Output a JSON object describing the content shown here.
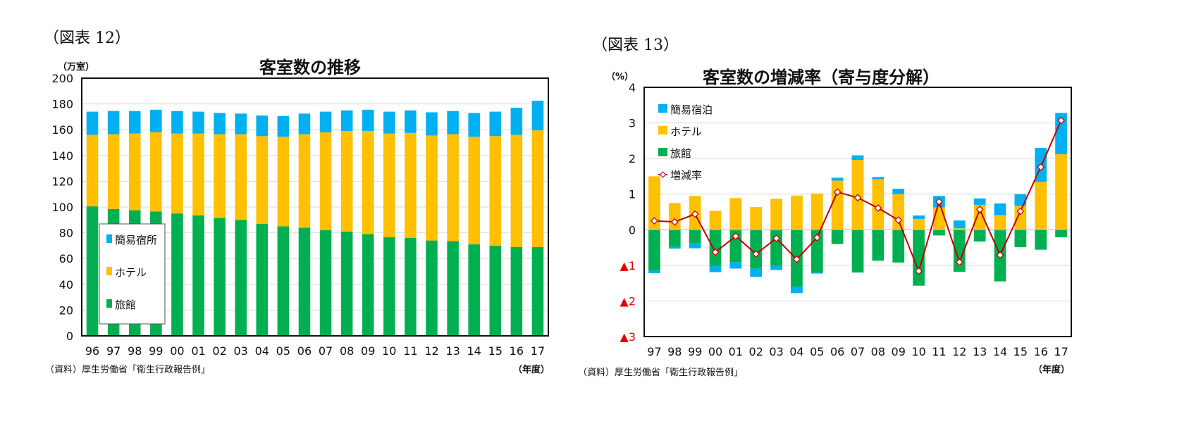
{
  "chart_data": [
    {
      "type": "bar",
      "stacked": true,
      "figure_label": "（図表 12）",
      "title": "客室数の推移",
      "ylabel": "（万室）",
      "xlabel": "（年度）",
      "source": "（資料）厚生労働省「衛生行政報告例」",
      "ylim": [
        0,
        200
      ],
      "yticks": [
        0,
        20,
        40,
        60,
        80,
        100,
        120,
        140,
        160,
        180,
        200
      ],
      "grid": true,
      "legend_position": "left-middle",
      "categories": [
        "96",
        "97",
        "98",
        "99",
        "00",
        "01",
        "02",
        "03",
        "04",
        "05",
        "06",
        "07",
        "08",
        "09",
        "10",
        "11",
        "12",
        "13",
        "14",
        "15",
        "16",
        "17"
      ],
      "series": [
        {
          "name": "旅館",
          "color": "#00B050",
          "values": [
            100.5,
            98.5,
            97.5,
            96.5,
            95,
            93.5,
            91.5,
            90,
            87,
            85,
            84,
            82,
            81,
            79,
            76.5,
            76,
            74,
            73.5,
            71,
            70,
            69,
            69
          ]
        },
        {
          "name": "ホテル",
          "color": "#FFC000",
          "values": [
            55.5,
            58,
            59.5,
            61.5,
            62,
            63.5,
            65,
            66.5,
            68,
            69.5,
            72.5,
            76,
            78,
            80,
            80.5,
            81.5,
            81.5,
            83,
            83.5,
            85,
            87,
            90.5
          ]
        },
        {
          "name": "簡易宿所",
          "color": "#00B0F0",
          "values": [
            18,
            18,
            17.5,
            17.5,
            17.5,
            17,
            16.5,
            16,
            16,
            16,
            16,
            16,
            16,
            16.5,
            17,
            17.5,
            18,
            18,
            18.5,
            19,
            21,
            23
          ]
        }
      ],
      "legend_order": [
        "簡易宿所",
        "ホテル",
        "旅館"
      ]
    },
    {
      "type": "bar+line",
      "stacked": true,
      "figure_label": "（図表 13）",
      "title": "客室数の増減率（寄与度分解）",
      "ylabel": "（%）",
      "xlabel": "（年度）",
      "source": "（資料）厚生労働省「衛生行政報告例」",
      "ylim": [
        -3,
        4
      ],
      "yticks": [
        -3,
        -2,
        -1,
        0,
        1,
        2,
        3,
        4
      ],
      "ytick_labels": [
        "▲3",
        "▲2",
        "▲1",
        "0",
        "1",
        "2",
        "3",
        "4"
      ],
      "negative_tick_color": "#E00000",
      "grid": true,
      "legend_position": "top-left",
      "categories": [
        "97",
        "98",
        "99",
        "00",
        "01",
        "02",
        "03",
        "04",
        "05",
        "06",
        "07",
        "08",
        "09",
        "10",
        "11",
        "12",
        "13",
        "14",
        "15",
        "16",
        "17"
      ],
      "series": [
        {
          "name": "旅館",
          "color": "#00B050",
          "values": [
            -1.14,
            -0.48,
            -0.37,
            -1.02,
            -0.91,
            -1.09,
            -1.0,
            -1.6,
            -1.2,
            -0.4,
            -1.2,
            -0.87,
            -0.92,
            -1.57,
            -0.16,
            -1.18,
            -0.33,
            -1.45,
            -0.49,
            -0.56,
            -0.21
          ]
        },
        {
          "name": "ホテル",
          "color": "#FFC000",
          "values": [
            1.5,
            0.75,
            0.95,
            0.53,
            0.89,
            0.64,
            0.87,
            0.96,
            1.02,
            1.38,
            1.96,
            1.42,
            1.0,
            0.3,
            0.63,
            0.04,
            0.7,
            0.41,
            0.67,
            1.35,
            2.12
          ]
        },
        {
          "name": "簡易宿泊",
          "color": "#00B0F0",
          "values": [
            -0.08,
            -0.05,
            -0.15,
            -0.17,
            -0.18,
            -0.23,
            -0.13,
            -0.18,
            -0.03,
            0.08,
            0.13,
            0.06,
            0.15,
            0.1,
            0.32,
            0.22,
            0.18,
            0.33,
            0.33,
            0.95,
            1.16
          ]
        }
      ],
      "line": {
        "name": "増減率",
        "color": "#C00000",
        "values": [
          0.25,
          0.22,
          0.44,
          -0.63,
          -0.18,
          -0.68,
          -0.24,
          -0.83,
          -0.22,
          1.06,
          0.9,
          0.61,
          0.27,
          -1.16,
          0.79,
          -0.91,
          0.57,
          -0.71,
          0.52,
          1.76,
          3.07
        ]
      },
      "legend_order": [
        "簡易宿泊",
        "ホテル",
        "旅館",
        "増減率"
      ]
    }
  ]
}
